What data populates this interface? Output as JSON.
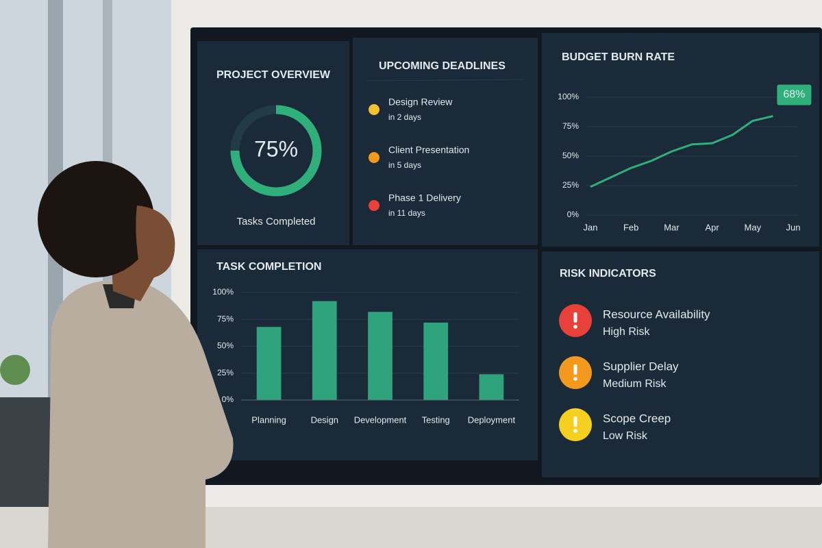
{
  "project_overview": {
    "title": "PROJECT OVERVIEW",
    "value": 75,
    "value_label": "75%",
    "caption": "Tasks Completed",
    "color": "#2fb07a"
  },
  "deadlines": {
    "title": "UPCOMING DEADLINES",
    "items": [
      {
        "name": "Design Review",
        "due": "in 2 days",
        "color": "#f2c230"
      },
      {
        "name": "Client Presentation",
        "due": "in 5 days",
        "color": "#f39a1c"
      },
      {
        "name": "Phase 1 Delivery",
        "due": "in 11 days",
        "color": "#e8413a"
      }
    ]
  },
  "risks": {
    "title": "RISK INDICATORS",
    "items": [
      {
        "name": "Resource Availability",
        "level": "High Risk",
        "color": "#e8413a"
      },
      {
        "name": "Supplier Delay",
        "level": "Medium Risk",
        "color": "#f39a1c"
      },
      {
        "name": "Scope Creep",
        "level": "Low Risk",
        "color": "#f5d020"
      }
    ]
  },
  "chart_data": [
    {
      "type": "line",
      "title": "BUDGET BURN RATE",
      "categories": [
        "Jan",
        null,
        "Feb",
        null,
        "Mar",
        null,
        "Apr",
        null,
        "May",
        null,
        "Jun"
      ],
      "values": [
        24,
        32,
        40,
        46,
        54,
        60,
        61,
        68,
        80,
        84,
        null
      ],
      "color": "#2fb07a",
      "annotation": "68%",
      "ylim": [
        0,
        100
      ],
      "yticks": [
        {
          "value": 0,
          "label": "0%"
        },
        {
          "value": 25,
          "label": "25%"
        },
        {
          "value": 50,
          "label": "50%"
        },
        {
          "value": 75,
          "label": "75%"
        },
        {
          "value": 100,
          "label": "100%"
        }
      ],
      "grid": true
    },
    {
      "type": "bar",
      "title": "TASK COMPLETION",
      "categories": [
        "Planning",
        "Design",
        "Development",
        "Testing",
        "Deployment"
      ],
      "values": [
        68,
        92,
        82,
        72,
        24
      ],
      "color": "#2fa37c",
      "ylim": [
        0,
        100
      ],
      "yticks": [
        {
          "value": 0,
          "label": "0%"
        },
        {
          "value": 25,
          "label": "25%"
        },
        {
          "value": 50,
          "label": "50%"
        },
        {
          "value": 75,
          "label": "75%"
        },
        {
          "value": 100,
          "label": "100%"
        }
      ],
      "grid": true
    }
  ]
}
